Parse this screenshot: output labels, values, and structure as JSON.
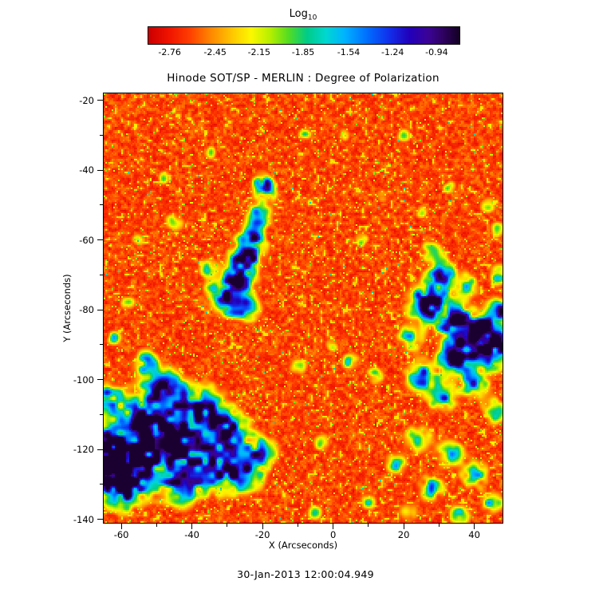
{
  "figure": {
    "timestamp": "30-Jan-2013 12:00:04.949"
  },
  "chart_data": {
    "type": "heatmap",
    "title": "Hinode SOT/SP - MERLIN : Degree of Polarization",
    "xlabel": "X (Arcseconds)",
    "ylabel": "Y (Arcseconds)",
    "x_range": [
      -65,
      48
    ],
    "y_range": [
      -141,
      -18
    ],
    "x_ticks": [
      -60,
      -40,
      -20,
      0,
      20,
      40
    ],
    "y_ticks": [
      -20,
      -40,
      -60,
      -80,
      -100,
      -120,
      -140
    ],
    "x_minor_ticks": [
      -50,
      -30,
      -10,
      10,
      30
    ],
    "y_minor_ticks": [
      -30,
      -50,
      -70,
      -90,
      -110,
      -130
    ],
    "colorbar": {
      "title_main": "Log",
      "title_sub": "10",
      "tick_labels": [
        "-2.76",
        "-2.45",
        "-2.15",
        "-1.85",
        "-1.54",
        "-1.24",
        "-0.94"
      ],
      "tick_values": [
        -2.76,
        -2.45,
        -2.15,
        -1.85,
        -1.54,
        -1.24,
        -0.94
      ],
      "value_min": -2.91,
      "value_max": -0.79
    },
    "colormap_stops": [
      [
        0.0,
        "#cc0000"
      ],
      [
        0.06,
        "#ee1100"
      ],
      [
        0.13,
        "#ff3c00"
      ],
      [
        0.2,
        "#ff8800"
      ],
      [
        0.27,
        "#ffc800"
      ],
      [
        0.33,
        "#fcf800"
      ],
      [
        0.39,
        "#b8f000"
      ],
      [
        0.45,
        "#55dd22"
      ],
      [
        0.51,
        "#00cc88"
      ],
      [
        0.57,
        "#00d8d0"
      ],
      [
        0.63,
        "#00b4ff"
      ],
      [
        0.7,
        "#0072ff"
      ],
      [
        0.77,
        "#1133ee"
      ],
      [
        0.84,
        "#2200bb"
      ],
      [
        0.9,
        "#3c0496"
      ],
      [
        0.95,
        "#2e0260"
      ],
      [
        1.0,
        "#140024"
      ]
    ],
    "background": {
      "base": 0.04,
      "fine_amp": 0.15,
      "rand_amp": 0.05,
      "yellow_threshold": 0.86,
      "yellow_boost": 0.1,
      "speck_threshold": 0.975,
      "speck_boost": 0.22
    },
    "features": [
      [
        -52,
        -112,
        6,
        0.88
      ],
      [
        -45,
        -120,
        5.5,
        0.92
      ],
      [
        -57,
        -126,
        4.5,
        0.85
      ],
      [
        -62,
        -119,
        4.5,
        0.82
      ],
      [
        -38,
        -108,
        4.5,
        0.8
      ],
      [
        -30,
        -115,
        4.5,
        0.86
      ],
      [
        -26,
        -127,
        4,
        0.8
      ],
      [
        -35,
        -126,
        4.5,
        0.75
      ],
      [
        -48,
        -102,
        3.5,
        0.7
      ],
      [
        -60,
        -132,
        4,
        0.72
      ],
      [
        -44,
        -132,
        3.5,
        0.65
      ],
      [
        -20,
        -121,
        3,
        0.6
      ],
      [
        -53,
        -95,
        2.5,
        0.55
      ],
      [
        -64,
        -105,
        3,
        0.62
      ],
      [
        -65,
        -124,
        4,
        0.8
      ],
      [
        -19,
        -46,
        2.2,
        0.62
      ],
      [
        -21,
        -53,
        2.4,
        0.7
      ],
      [
        -23,
        -60,
        2.8,
        0.8
      ],
      [
        -25,
        -66,
        3,
        0.85
      ],
      [
        -27,
        -72,
        3,
        0.8
      ],
      [
        -29,
        -78,
        2.8,
        0.74
      ],
      [
        -24,
        -80,
        2.4,
        0.6
      ],
      [
        -33,
        -75,
        2.4,
        0.62
      ],
      [
        -35,
        -68,
        2,
        0.5
      ],
      [
        27,
        -78,
        3.8,
        1.0
      ],
      [
        31,
        -70,
        3,
        0.78
      ],
      [
        35,
        -84,
        3.6,
        0.85
      ],
      [
        40,
        -90,
        3.8,
        0.9
      ],
      [
        34,
        -94,
        3,
        0.8
      ],
      [
        44,
        -86,
        3,
        0.85
      ],
      [
        47,
        -93,
        3,
        0.8
      ],
      [
        25,
        -99,
        3,
        0.7
      ],
      [
        31,
        -105,
        2.8,
        0.66
      ],
      [
        40,
        -101,
        2.8,
        0.7
      ],
      [
        47,
        -80,
        2.4,
        0.7
      ],
      [
        38,
        -73,
        2.2,
        0.6
      ],
      [
        22,
        -88,
        2.4,
        0.6
      ],
      [
        46,
        -109,
        2.4,
        0.6
      ],
      [
        28,
        -63,
        2,
        0.5
      ],
      [
        47,
        -70,
        2,
        0.55
      ],
      [
        24,
        -117,
        2.6,
        0.58
      ],
      [
        33,
        -121,
        2.6,
        0.6
      ],
      [
        40,
        -127,
        2.6,
        0.6
      ],
      [
        28,
        -131,
        2.6,
        0.55
      ],
      [
        18,
        -124,
        2.2,
        0.5
      ],
      [
        45,
        -135,
        2.2,
        0.55
      ],
      [
        36,
        -139,
        2.2,
        0.5
      ],
      [
        21,
        -138,
        2,
        0.45
      ],
      [
        5,
        -95,
        1.8,
        0.5
      ],
      [
        12,
        -99,
        1.8,
        0.5
      ],
      [
        -3,
        -118,
        1.8,
        0.45
      ],
      [
        8,
        -60,
        1.5,
        0.42
      ],
      [
        -20,
        -43,
        1.8,
        0.55
      ],
      [
        -8,
        -30,
        1.4,
        0.4
      ],
      [
        20,
        -30,
        1.4,
        0.4
      ],
      [
        -45,
        -55,
        1.8,
        0.45
      ],
      [
        -55,
        -60,
        1.4,
        0.4
      ],
      [
        -48,
        -42,
        1.4,
        0.4
      ],
      [
        14,
        -47,
        1.4,
        0.4
      ],
      [
        -10,
        -96,
        1.8,
        0.45
      ],
      [
        0,
        -90,
        1.4,
        0.4
      ],
      [
        -58,
        -78,
        1.5,
        0.42
      ],
      [
        -62,
        -88,
        1.5,
        0.45
      ],
      [
        10,
        -135,
        1.6,
        0.45
      ],
      [
        -5,
        -138,
        1.6,
        0.45
      ],
      [
        3,
        -30,
        1.3,
        0.38
      ],
      [
        -35,
        -35,
        1.4,
        0.4
      ],
      [
        44,
        -50,
        1.6,
        0.45
      ],
      [
        47,
        -57,
        1.6,
        0.5
      ],
      [
        33,
        -45,
        1.4,
        0.4
      ],
      [
        25,
        -52,
        1.3,
        0.38
      ]
    ]
  }
}
